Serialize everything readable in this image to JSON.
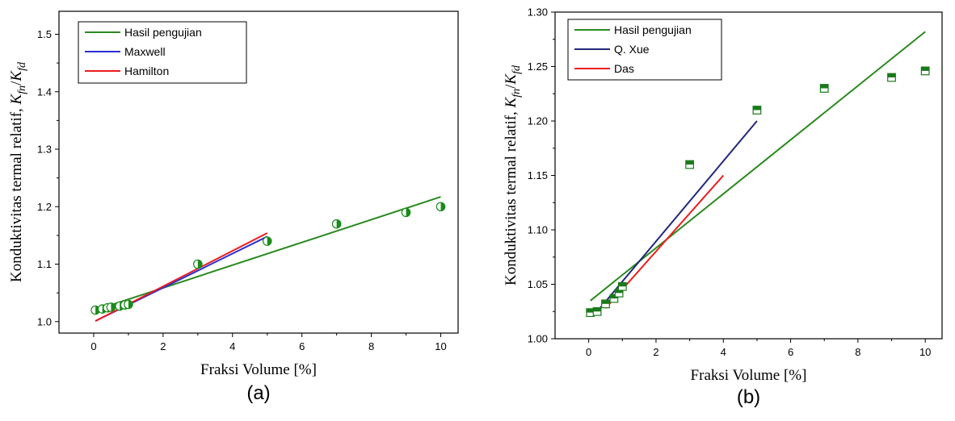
{
  "chart_data": [
    {
      "type": "scatter",
      "panel_label": "(a)",
      "xlabel": "Fraksi Volume [%]",
      "ylabel": "Konduktivitas termal relatif, ",
      "ylabel_math": "K_fn/K_fd",
      "ylabel_k1": "K",
      "ylabel_s1": "fn",
      "ylabel_slash": "/",
      "ylabel_k2": "K",
      "ylabel_s2": "fd",
      "xlim": [
        -1,
        10.5
      ],
      "ylim": [
        0.98,
        1.54
      ],
      "xticks": [
        "0",
        "2",
        "4",
        "6",
        "8",
        "10"
      ],
      "xtick_values": [
        0,
        2,
        4,
        6,
        8,
        10
      ],
      "yticks": [
        "1.0",
        "1.1",
        "1.2",
        "1.3",
        "1.4",
        "1.5"
      ],
      "ytick_values": [
        1.0,
        1.1,
        1.2,
        1.3,
        1.4,
        1.5
      ],
      "legend_position": "top-left",
      "marker": "half-filled-circle",
      "marker_color": "#1a8a1a",
      "points": {
        "x": [
          0.05,
          0.25,
          0.4,
          0.5,
          0.75,
          0.9,
          1.0,
          3.0,
          5.0,
          7.0,
          9.0,
          10.0
        ],
        "y": [
          1.02,
          1.022,
          1.024,
          1.025,
          1.027,
          1.029,
          1.03,
          1.1,
          1.14,
          1.17,
          1.19,
          1.2
        ]
      },
      "series": [
        {
          "name": "Hasil pengujian",
          "color": "#2a8a1f",
          "x": [
            0.05,
            10.0
          ],
          "y": [
            1.02,
            1.217
          ]
        },
        {
          "name": "Maxwell",
          "color": "#2b2fd6",
          "x": [
            0.05,
            5.0
          ],
          "y": [
            1.001,
            1.148
          ]
        },
        {
          "name": "Hamilton",
          "color": "#ee1c1c",
          "x": [
            0.05,
            5.0
          ],
          "y": [
            1.001,
            1.154
          ]
        }
      ]
    },
    {
      "type": "scatter",
      "panel_label": "(b)",
      "xlabel": "Fraksi Volume [%]",
      "ylabel": "Konduktivitas termal relatif, ",
      "ylabel_math": "K_fn/K_fd",
      "ylabel_k1": "K",
      "ylabel_s1": "fn",
      "ylabel_slash": "/",
      "ylabel_k2": "K",
      "ylabel_s2": "fd",
      "xlim": [
        -1,
        10.5
      ],
      "ylim": [
        1.0,
        1.3
      ],
      "xticks": [
        "0",
        "2",
        "4",
        "6",
        "8",
        "10"
      ],
      "xtick_values": [
        0,
        2,
        4,
        6,
        8,
        10
      ],
      "yticks": [
        "1.00",
        "1.05",
        "1.10",
        "1.15",
        "1.20",
        "1.25",
        "1.30"
      ],
      "ytick_values": [
        1.0,
        1.05,
        1.1,
        1.15,
        1.2,
        1.25,
        1.3
      ],
      "legend_position": "top-left",
      "marker": "half-filled-square",
      "marker_color": "#1a7a1a",
      "points": {
        "x": [
          0.05,
          0.25,
          0.5,
          0.75,
          0.9,
          1.0,
          3.0,
          5.0,
          7.0,
          9.0,
          10.0
        ],
        "y": [
          1.024,
          1.025,
          1.032,
          1.037,
          1.042,
          1.048,
          1.16,
          1.21,
          1.23,
          1.24,
          1.246
        ]
      },
      "series": [
        {
          "name": "Hasil pengujian",
          "color": "#2a8a1f",
          "x": [
            0.05,
            10.0
          ],
          "y": [
            1.035,
            1.282
          ]
        },
        {
          "name": "Q. Xue",
          "color": "#22287a",
          "x": [
            0.25,
            5.0
          ],
          "y": [
            1.025,
            1.2
          ]
        },
        {
          "name": "Das",
          "color": "#ee1c1c",
          "x": [
            0.5,
            4.0
          ],
          "y": [
            1.028,
            1.15
          ]
        }
      ]
    }
  ]
}
